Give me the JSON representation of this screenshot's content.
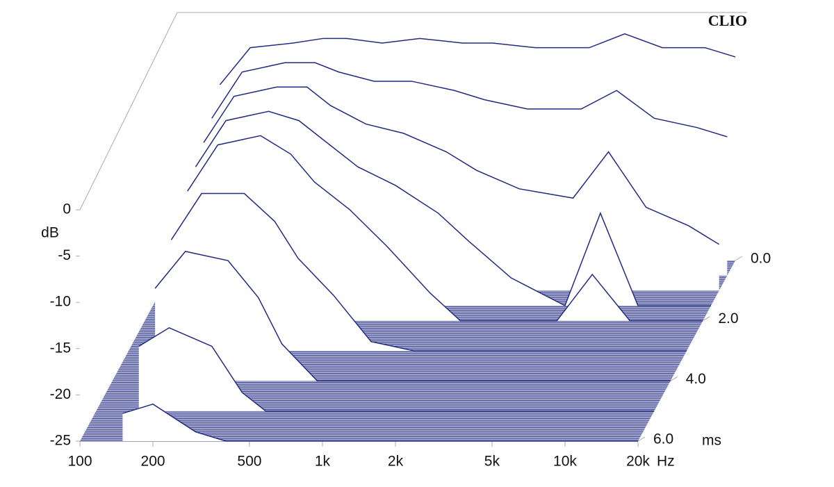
{
  "chart_data": {
    "type": "waterfall",
    "watermark": "CLIO",
    "x_unit": "Hz",
    "y_unit": "dB",
    "z_unit": "ms",
    "log_x": true,
    "color": "#1f2a80",
    "floor_color": "#3a428f",
    "xlim": [
      100,
      20000
    ],
    "xticks": [
      100,
      200,
      500,
      {
        "value": 1000,
        "label": "1k"
      },
      {
        "value": 2000,
        "label": "2k"
      },
      {
        "value": 5000,
        "label": "5k"
      },
      {
        "value": 10000,
        "label": "10k"
      },
      {
        "value": 20000,
        "label": "20k"
      }
    ],
    "ylim": [
      -25,
      0
    ],
    "yticks": [
      0,
      -5,
      -10,
      -15,
      -20,
      -25
    ],
    "zlim": [
      0,
      6
    ],
    "zticks": [
      {
        "value": 0,
        "label": "0.0"
      },
      {
        "value": 2,
        "label": "2.0"
      },
      {
        "value": 4,
        "label": "4.0"
      },
      {
        "value": 6,
        "label": "6.0"
      }
    ],
    "x": [
      150,
      200,
      300,
      400,
      500,
      700,
      1000,
      1500,
      2000,
      3000,
      5000,
      7000,
      10000,
      15000,
      20000
    ],
    "slices": [
      {
        "t": 0,
        "values": [
          -6,
          -2,
          -1.5,
          -1,
          -1,
          -1.5,
          -1,
          -1.5,
          -1.5,
          -2,
          -2,
          -0.5,
          -2,
          -2,
          -3
        ]
      },
      {
        "t": 0.5,
        "values": [
          -8,
          -3,
          -2,
          -2,
          -3,
          -4,
          -4,
          -5,
          -6,
          -7,
          -7,
          -5,
          -8,
          -9,
          -10
        ]
      },
      {
        "t": 1,
        "values": [
          -9,
          -4,
          -3,
          -3,
          -5,
          -7,
          -8,
          -10,
          -12,
          -14,
          -15,
          -10,
          -16,
          -18,
          -20
        ]
      },
      {
        "t": 1.5,
        "values": [
          -10,
          -5,
          -4,
          -5,
          -7,
          -10,
          -12,
          -15,
          -18,
          -22,
          -25,
          -15,
          -25,
          -25,
          -25
        ]
      },
      {
        "t": 2,
        "values": [
          -11,
          -6,
          -5,
          -7,
          -10,
          -13,
          -17,
          -22,
          -25,
          -25,
          -25,
          -20,
          -25,
          -25,
          -25
        ]
      },
      {
        "t": 3,
        "values": [
          -13,
          -8,
          -8,
          -11,
          -15,
          -19,
          -24,
          -25,
          -25,
          -25,
          -25,
          -25,
          -25,
          -25,
          -25
        ]
      },
      {
        "t": 4,
        "values": [
          -15,
          -11,
          -12,
          -16,
          -21,
          -25,
          -25,
          -25,
          -25,
          -25,
          -25,
          -25,
          -25,
          -25,
          -25
        ]
      },
      {
        "t": 5,
        "values": [
          -18,
          -16,
          -18,
          -23,
          -25,
          -25,
          -25,
          -25,
          -25,
          -25,
          -25,
          -25,
          -25,
          -25,
          -25
        ]
      },
      {
        "t": 6,
        "values": [
          -22,
          -21,
          -24,
          -25,
          -25,
          -25,
          -25,
          -25,
          -25,
          -25,
          -25,
          -25,
          -25,
          -25,
          -25
        ]
      }
    ]
  }
}
